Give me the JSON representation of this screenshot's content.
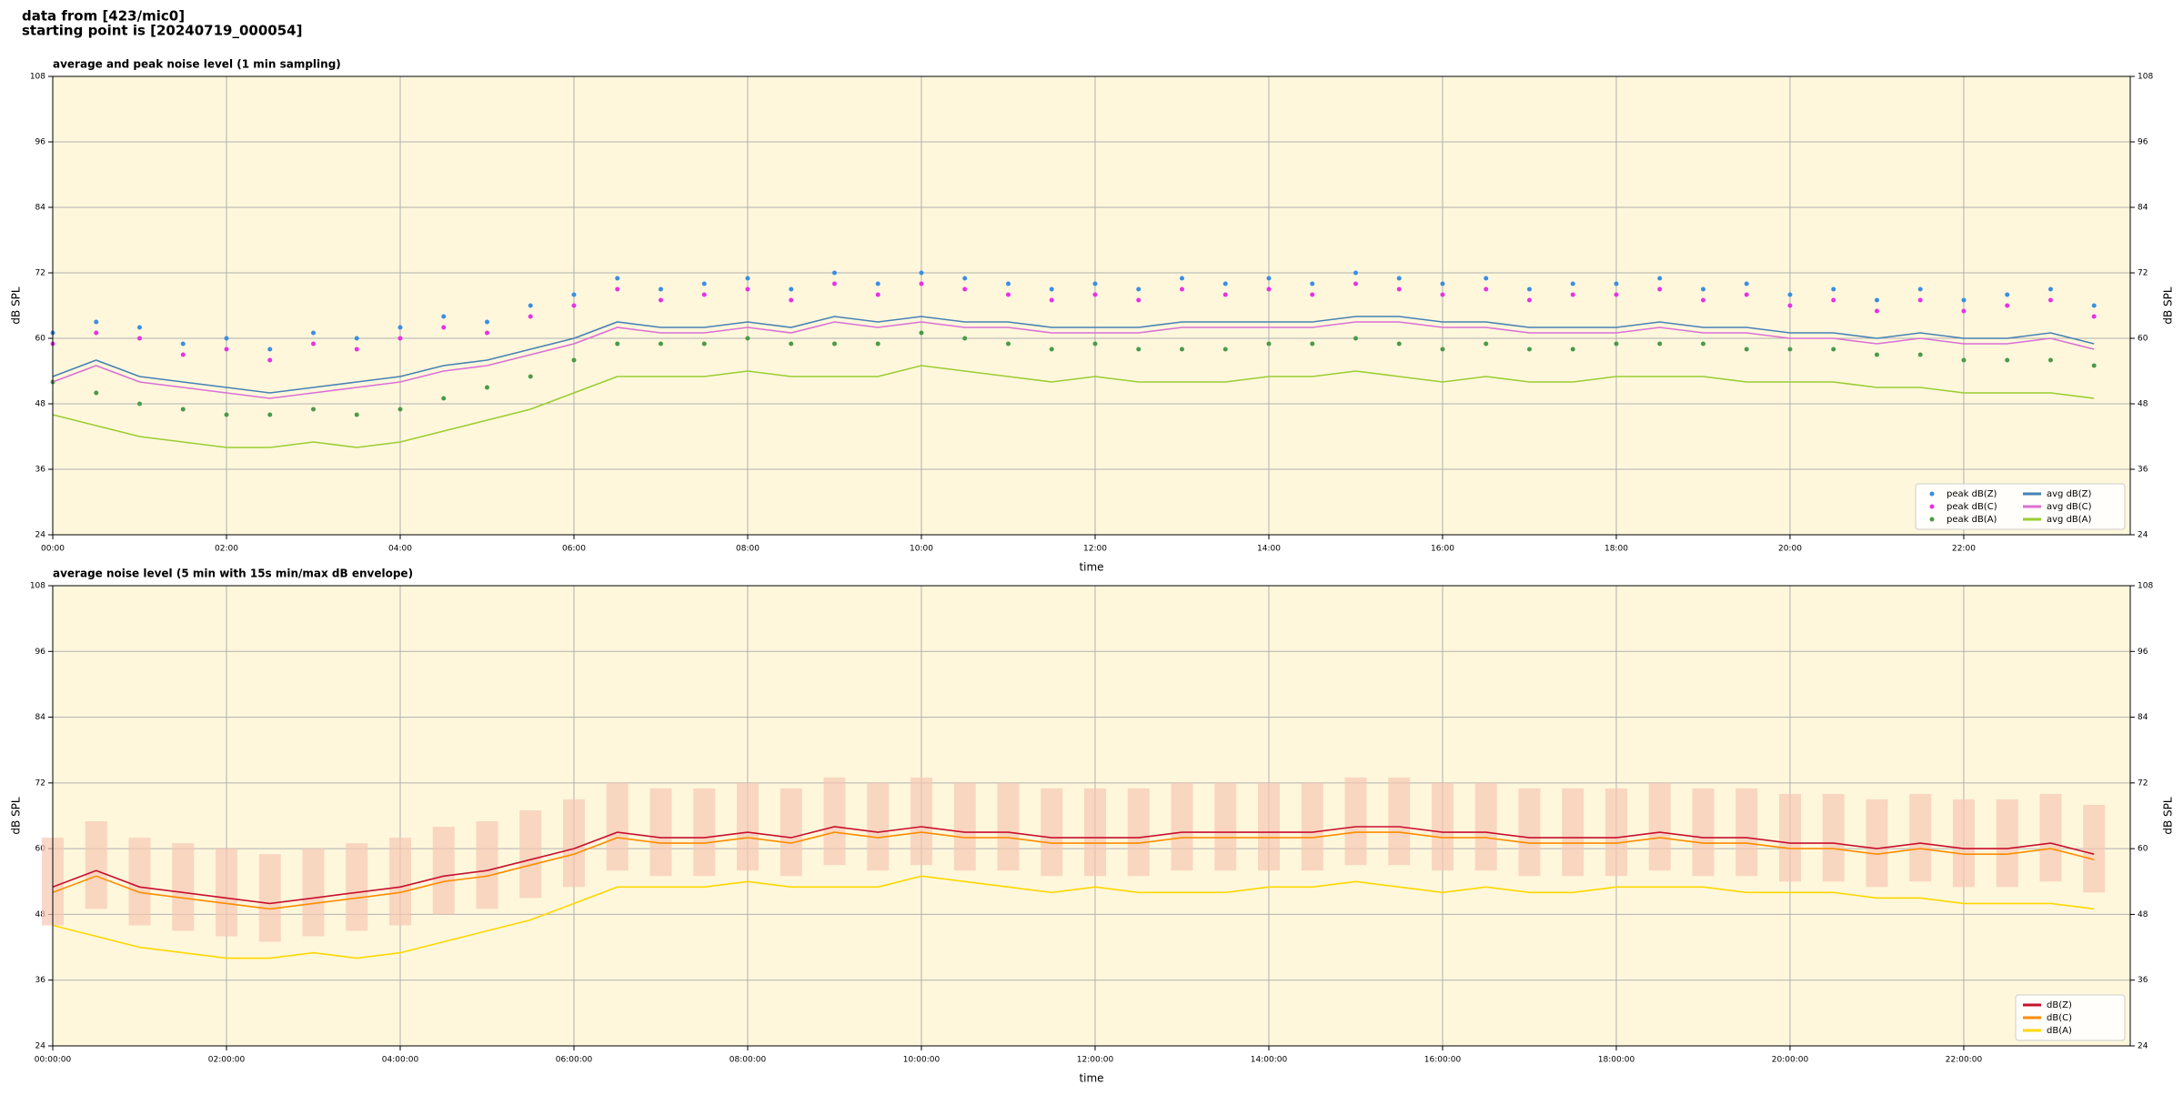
{
  "header": {
    "source": "data from [423/mic0]",
    "start": "starting point is [20240719_000054]"
  },
  "chart_data": [
    {
      "type": "line",
      "title": "average and peak noise level (1 min sampling)",
      "x_label": "time",
      "y_label": "dB SPL",
      "x": [
        "00:00",
        "00:30",
        "01:00",
        "01:30",
        "02:00",
        "02:30",
        "03:00",
        "03:30",
        "04:00",
        "04:30",
        "05:00",
        "05:30",
        "06:00",
        "06:30",
        "07:00",
        "07:30",
        "08:00",
        "08:30",
        "09:00",
        "09:30",
        "10:00",
        "10:30",
        "11:00",
        "11:30",
        "12:00",
        "12:30",
        "13:00",
        "13:30",
        "14:00",
        "14:30",
        "15:00",
        "15:30",
        "16:00",
        "16:30",
        "17:00",
        "17:30",
        "18:00",
        "18:30",
        "19:00",
        "19:30",
        "20:00",
        "20:30",
        "21:00",
        "21:30",
        "22:00",
        "22:30",
        "23:00",
        "23:30"
      ],
      "xlim": [
        "00:00",
        "23:55"
      ],
      "xticks": [
        "00:00",
        "02:00",
        "04:00",
        "06:00",
        "08:00",
        "10:00",
        "12:00",
        "14:00",
        "16:00",
        "18:00",
        "20:00",
        "22:00"
      ],
      "ylim": [
        24,
        108
      ],
      "yticks": [
        24,
        36,
        48,
        60,
        72,
        84,
        96,
        108
      ],
      "grid": true,
      "legend": "lower right",
      "background": "#fff7dc",
      "series": [
        {
          "name": "peak dB(Z)",
          "style": "points",
          "color": "#3a8ee6",
          "values": [
            61,
            63,
            62,
            59,
            60,
            58,
            61,
            60,
            62,
            64,
            63,
            66,
            68,
            71,
            69,
            70,
            71,
            69,
            72,
            70,
            72,
            71,
            70,
            69,
            70,
            69,
            71,
            70,
            71,
            70,
            72,
            71,
            70,
            71,
            69,
            70,
            70,
            71,
            69,
            70,
            68,
            69,
            67,
            69,
            67,
            68,
            69,
            66
          ]
        },
        {
          "name": "peak dB(C)",
          "style": "points",
          "color": "#e632e6",
          "values": [
            59,
            61,
            60,
            57,
            58,
            56,
            59,
            58,
            60,
            62,
            61,
            64,
            66,
            69,
            67,
            68,
            69,
            67,
            70,
            68,
            70,
            69,
            68,
            67,
            68,
            67,
            69,
            68,
            69,
            68,
            70,
            69,
            68,
            69,
            67,
            68,
            68,
            69,
            67,
            68,
            66,
            67,
            65,
            67,
            65,
            66,
            67,
            64
          ]
        },
        {
          "name": "peak dB(A)",
          "style": "points",
          "color": "#4a9a4a",
          "values": [
            52,
            50,
            48,
            47,
            46,
            46,
            47,
            46,
            47,
            49,
            51,
            53,
            56,
            59,
            59,
            59,
            60,
            59,
            59,
            59,
            61,
            60,
            59,
            58,
            59,
            58,
            58,
            58,
            59,
            59,
            60,
            59,
            58,
            59,
            58,
            58,
            59,
            59,
            59,
            58,
            58,
            58,
            57,
            57,
            56,
            56,
            56,
            55
          ]
        },
        {
          "name": "avg dB(Z)",
          "style": "line",
          "color": "#4682b4",
          "values": [
            53,
            56,
            53,
            52,
            51,
            50,
            51,
            52,
            53,
            55,
            56,
            58,
            60,
            63,
            62,
            62,
            63,
            62,
            64,
            63,
            64,
            63,
            63,
            62,
            62,
            62,
            63,
            63,
            63,
            63,
            64,
            64,
            63,
            63,
            62,
            62,
            62,
            63,
            62,
            62,
            61,
            61,
            60,
            61,
            60,
            60,
            61,
            59
          ]
        },
        {
          "name": "avg dB(C)",
          "style": "line",
          "color": "#da70d6",
          "values": [
            52,
            55,
            52,
            51,
            50,
            49,
            50,
            51,
            52,
            54,
            55,
            57,
            59,
            62,
            61,
            61,
            62,
            61,
            63,
            62,
            63,
            62,
            62,
            61,
            61,
            61,
            62,
            62,
            62,
            62,
            63,
            63,
            62,
            62,
            61,
            61,
            61,
            62,
            61,
            61,
            60,
            60,
            59,
            60,
            59,
            59,
            60,
            58
          ]
        },
        {
          "name": "avg dB(A)",
          "style": "line",
          "color": "#9acd32",
          "values": [
            46,
            44,
            42,
            41,
            40,
            40,
            41,
            40,
            41,
            43,
            45,
            47,
            50,
            53,
            53,
            53,
            54,
            53,
            53,
            53,
            55,
            54,
            53,
            52,
            53,
            52,
            52,
            52,
            53,
            53,
            54,
            53,
            52,
            53,
            52,
            52,
            53,
            53,
            53,
            52,
            52,
            52,
            51,
            51,
            50,
            50,
            50,
            49
          ]
        }
      ]
    },
    {
      "type": "line",
      "title": "average noise level (5 min with 15s min/max dB envelope)",
      "x_label": "time",
      "y_label": "dB SPL",
      "x": [
        "00:00",
        "00:30",
        "01:00",
        "01:30",
        "02:00",
        "02:30",
        "03:00",
        "03:30",
        "04:00",
        "04:30",
        "05:00",
        "05:30",
        "06:00",
        "06:30",
        "07:00",
        "07:30",
        "08:00",
        "08:30",
        "09:00",
        "09:30",
        "10:00",
        "10:30",
        "11:00",
        "11:30",
        "12:00",
        "12:30",
        "13:00",
        "13:30",
        "14:00",
        "14:30",
        "15:00",
        "15:30",
        "16:00",
        "16:30",
        "17:00",
        "17:30",
        "18:00",
        "18:30",
        "19:00",
        "19:30",
        "20:00",
        "20:30",
        "21:00",
        "21:30",
        "22:00",
        "22:30",
        "23:00",
        "23:30"
      ],
      "xlim": [
        "00:00",
        "23:55"
      ],
      "xticks": [
        {
          "value": "00:00",
          "label": "00:00:00"
        },
        {
          "value": "02:00",
          "label": "02:00:00"
        },
        {
          "value": "04:00",
          "label": "04:00:00"
        },
        {
          "value": "06:00",
          "label": "06:00:00"
        },
        {
          "value": "08:00",
          "label": "08:00:00"
        },
        {
          "value": "10:00",
          "label": "10:00:00"
        },
        {
          "value": "12:00",
          "label": "12:00:00"
        },
        {
          "value": "14:00",
          "label": "14:00:00"
        },
        {
          "value": "16:00",
          "label": "16:00:00"
        },
        {
          "value": "18:00",
          "label": "18:00:00"
        },
        {
          "value": "20:00",
          "label": "20:00:00"
        },
        {
          "value": "22:00",
          "label": "22:00:00"
        }
      ],
      "ylim": [
        24,
        108
      ],
      "yticks": [
        24,
        36,
        48,
        60,
        72,
        84,
        96,
        108
      ],
      "grid": true,
      "legend": "lower right",
      "background": "#fff7dc",
      "envelope": {
        "color": "#f7c7b4",
        "lower": [
          46,
          49,
          46,
          45,
          44,
          43,
          44,
          45,
          46,
          48,
          49,
          51,
          53,
          56,
          55,
          55,
          56,
          55,
          57,
          56,
          57,
          56,
          56,
          55,
          55,
          55,
          56,
          56,
          56,
          56,
          57,
          57,
          56,
          56,
          55,
          55,
          55,
          56,
          55,
          55,
          54,
          54,
          53,
          54,
          53,
          53,
          54,
          52
        ],
        "upper": [
          62,
          65,
          62,
          61,
          60,
          59,
          60,
          61,
          62,
          64,
          65,
          67,
          69,
          72,
          71,
          71,
          72,
          71,
          73,
          72,
          73,
          72,
          72,
          71,
          71,
          71,
          72,
          72,
          72,
          72,
          73,
          73,
          72,
          72,
          71,
          71,
          71,
          72,
          71,
          71,
          70,
          70,
          69,
          70,
          69,
          69,
          70,
          68
        ]
      },
      "series": [
        {
          "name": "dB(Z)",
          "style": "line",
          "color": "#c8102e",
          "values": [
            53,
            56,
            53,
            52,
            51,
            50,
            51,
            52,
            53,
            55,
            56,
            58,
            60,
            63,
            62,
            62,
            63,
            62,
            64,
            63,
            64,
            63,
            63,
            62,
            62,
            62,
            63,
            63,
            63,
            63,
            64,
            64,
            63,
            63,
            62,
            62,
            62,
            63,
            62,
            62,
            61,
            61,
            60,
            61,
            60,
            60,
            61,
            59
          ]
        },
        {
          "name": "dB(C)",
          "style": "line",
          "color": "#ff8c00",
          "values": [
            52,
            55,
            52,
            51,
            50,
            49,
            50,
            51,
            52,
            54,
            55,
            57,
            59,
            62,
            61,
            61,
            62,
            61,
            63,
            62,
            63,
            62,
            62,
            61,
            61,
            61,
            62,
            62,
            62,
            62,
            63,
            63,
            62,
            62,
            61,
            61,
            61,
            62,
            61,
            61,
            60,
            60,
            59,
            60,
            59,
            59,
            60,
            58
          ]
        },
        {
          "name": "dB(A)",
          "style": "line",
          "color": "#ffd700",
          "values": [
            46,
            44,
            42,
            41,
            40,
            40,
            41,
            40,
            41,
            43,
            45,
            47,
            50,
            53,
            53,
            53,
            54,
            53,
            53,
            53,
            55,
            54,
            53,
            52,
            53,
            52,
            52,
            52,
            53,
            53,
            54,
            53,
            52,
            53,
            52,
            52,
            53,
            53,
            53,
            52,
            52,
            52,
            51,
            51,
            50,
            50,
            50,
            49
          ]
        }
      ]
    }
  ]
}
